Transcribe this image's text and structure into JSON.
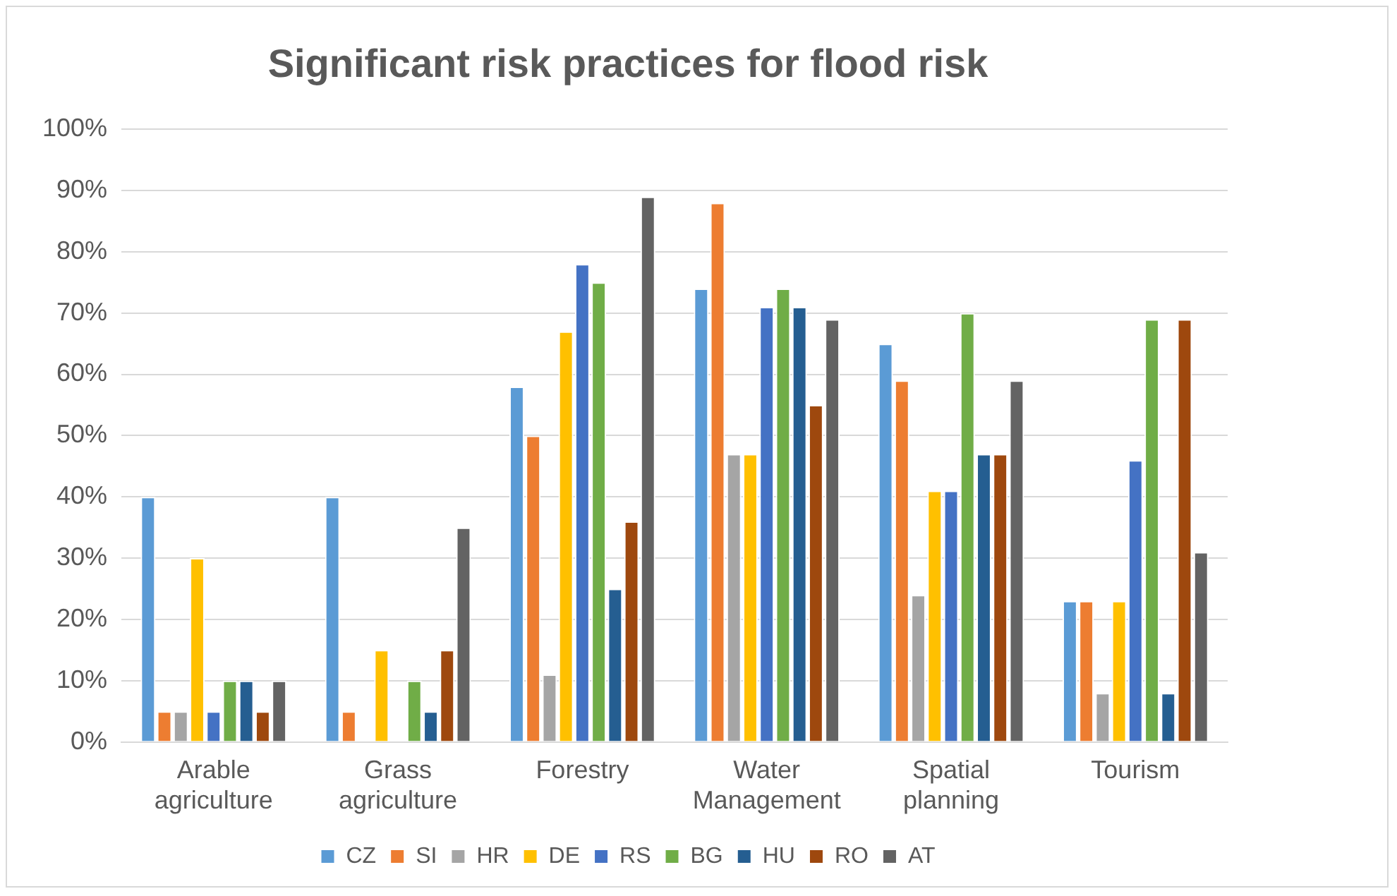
{
  "chart_data": {
    "type": "bar",
    "title": "Significant risk practices for flood risk",
    "categories": [
      "Arable agriculture",
      "Grass agriculture",
      "Forestry",
      "Water Management",
      "Spatial planning",
      "Tourism"
    ],
    "series": [
      {
        "name": "CZ",
        "color": "#5b9bd5",
        "values": [
          40,
          40,
          58,
          74,
          65,
          23
        ]
      },
      {
        "name": "SI",
        "color": "#ed7d31",
        "values": [
          5,
          5,
          50,
          88,
          59,
          23
        ]
      },
      {
        "name": "HR",
        "color": "#a5a5a5",
        "values": [
          5,
          0,
          11,
          47,
          24,
          8
        ]
      },
      {
        "name": "DE",
        "color": "#ffc000",
        "values": [
          30,
          15,
          67,
          47,
          41,
          23
        ]
      },
      {
        "name": "RS",
        "color": "#4472c4",
        "values": [
          5,
          0,
          78,
          71,
          41,
          46
        ]
      },
      {
        "name": "BG",
        "color": "#70ad47",
        "values": [
          10,
          10,
          75,
          74,
          70,
          69
        ]
      },
      {
        "name": "HU",
        "color": "#255e91",
        "values": [
          10,
          5,
          25,
          71,
          47,
          8
        ]
      },
      {
        "name": "RO",
        "color": "#9e480e",
        "values": [
          5,
          15,
          36,
          55,
          47,
          69
        ]
      },
      {
        "name": "AT",
        "color": "#636363",
        "values": [
          10,
          35,
          89,
          69,
          59,
          31
        ]
      }
    ],
    "ylim": [
      0,
      100
    ],
    "yticks": [
      {
        "value": 0,
        "label": "0%"
      },
      {
        "value": 10,
        "label": "10%"
      },
      {
        "value": 20,
        "label": "20%"
      },
      {
        "value": 30,
        "label": "30%"
      },
      {
        "value": 40,
        "label": "40%"
      },
      {
        "value": 50,
        "label": "50%"
      },
      {
        "value": 60,
        "label": "60%"
      },
      {
        "value": 70,
        "label": "70%"
      },
      {
        "value": 80,
        "label": "80%"
      },
      {
        "value": 90,
        "label": "90%"
      },
      {
        "value": 100,
        "label": "100%"
      }
    ],
    "grid": "y",
    "legend": "bottom"
  }
}
